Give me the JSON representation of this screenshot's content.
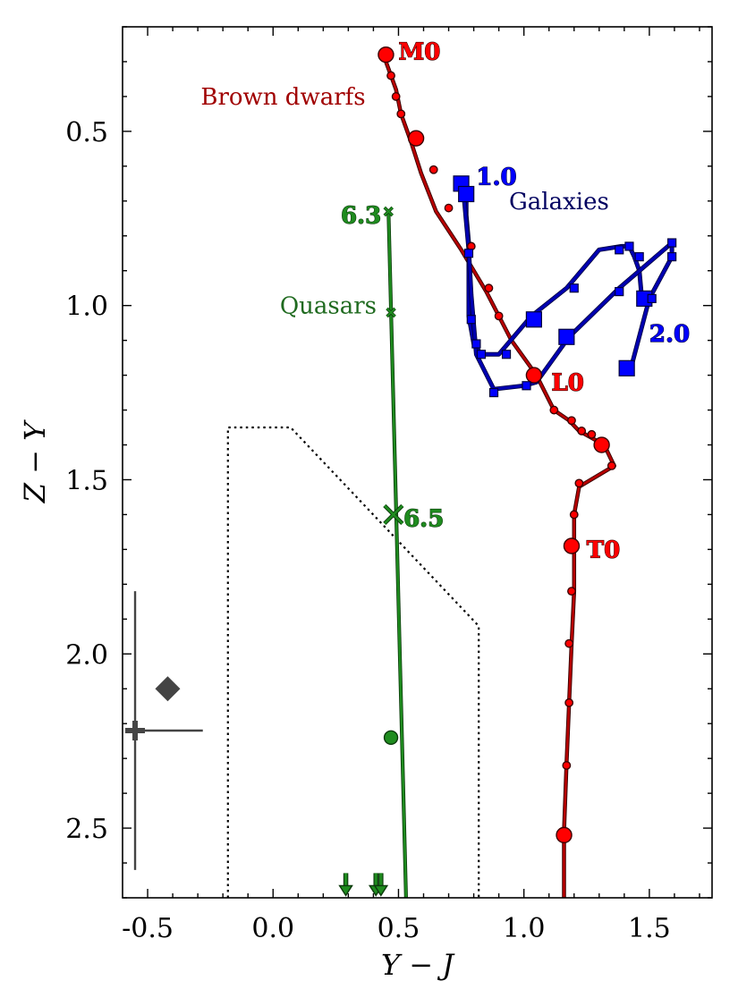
{
  "chart_data": {
    "type": "line",
    "title": "",
    "xlabel": "Y − J",
    "ylabel": "Z − Y",
    "xlim": [
      -0.6,
      1.75
    ],
    "ylim": [
      2.7,
      0.2
    ],
    "y_inverted": true,
    "xticks": [
      -0.5,
      0.0,
      0.5,
      1.0,
      1.5
    ],
    "xtick_labels": [
      "-0.5",
      "0.0",
      "0.5",
      "1.0",
      "1.5"
    ],
    "yticks": [
      0.5,
      1.0,
      1.5,
      2.0,
      2.5
    ],
    "ytick_labels": [
      "0.5",
      "1.0",
      "1.5",
      "2.0",
      "2.5"
    ],
    "colors": {
      "brown": "#ff0000",
      "brown_line": "#b80000",
      "brown_text": "#a00000",
      "galaxy": "#0000ff",
      "galaxy_line": "#0000b0",
      "galaxy_text": "#000060",
      "quasar": "#1f8c1f",
      "quasar_text": "#1f6a1f",
      "error": "#444444"
    },
    "series": [
      {
        "name": "Brown dwarfs",
        "x": [
          0.45,
          0.47,
          0.49,
          0.51,
          0.55,
          0.59,
          0.65,
          0.75,
          0.85,
          0.95,
          1.05,
          1.12,
          1.18,
          1.22,
          1.27,
          1.32,
          1.36,
          1.22,
          1.2,
          1.2,
          1.2,
          1.19,
          1.18,
          1.17,
          1.16,
          1.16,
          1.16
        ],
        "y": [
          0.3,
          0.34,
          0.38,
          0.45,
          0.53,
          0.62,
          0.73,
          0.84,
          0.96,
          1.1,
          1.2,
          1.3,
          1.33,
          1.36,
          1.38,
          1.4,
          1.46,
          1.52,
          1.6,
          1.7,
          1.82,
          1.97,
          2.14,
          2.31,
          2.51,
          2.6,
          2.7
        ],
        "markers": [
          {
            "x": 0.45,
            "y": 0.28,
            "size": "big"
          },
          {
            "x": 0.47,
            "y": 0.34,
            "size": "small"
          },
          {
            "x": 0.49,
            "y": 0.4,
            "size": "small"
          },
          {
            "x": 0.51,
            "y": 0.45,
            "size": "small"
          },
          {
            "x": 0.57,
            "y": 0.52,
            "size": "big"
          },
          {
            "x": 0.64,
            "y": 0.61,
            "size": "small"
          },
          {
            "x": 0.7,
            "y": 0.72,
            "size": "small"
          },
          {
            "x": 0.79,
            "y": 0.83,
            "size": "small"
          },
          {
            "x": 0.86,
            "y": 0.95,
            "size": "small"
          },
          {
            "x": 0.9,
            "y": 1.03,
            "size": "small"
          },
          {
            "x": 1.04,
            "y": 1.2,
            "size": "big"
          },
          {
            "x": 1.12,
            "y": 1.3,
            "size": "small"
          },
          {
            "x": 1.19,
            "y": 1.33,
            "size": "small"
          },
          {
            "x": 1.23,
            "y": 1.36,
            "size": "small"
          },
          {
            "x": 1.27,
            "y": 1.37,
            "size": "small"
          },
          {
            "x": 1.31,
            "y": 1.4,
            "size": "big"
          },
          {
            "x": 1.35,
            "y": 1.46,
            "size": "small"
          },
          {
            "x": 1.22,
            "y": 1.51,
            "size": "small"
          },
          {
            "x": 1.2,
            "y": 1.6,
            "size": "small"
          },
          {
            "x": 1.19,
            "y": 1.69,
            "size": "big"
          },
          {
            "x": 1.19,
            "y": 1.82,
            "size": "small"
          },
          {
            "x": 1.18,
            "y": 1.97,
            "size": "small"
          },
          {
            "x": 1.18,
            "y": 2.14,
            "size": "small"
          },
          {
            "x": 1.17,
            "y": 2.32,
            "size": "small"
          },
          {
            "x": 1.16,
            "y": 2.52,
            "size": "big"
          }
        ],
        "point_labels": [
          {
            "text": "M0",
            "x": 0.5,
            "y": 0.27
          },
          {
            "text": "L0",
            "x": 1.11,
            "y": 1.22
          },
          {
            "text": "T0",
            "x": 1.25,
            "y": 1.7
          }
        ]
      },
      {
        "name": "Galaxies",
        "path_a": {
          "x": [
            0.76,
            0.77,
            0.77,
            0.78,
            0.78,
            0.8,
            0.83,
            0.9,
            1.03,
            1.17,
            1.3,
            1.39,
            1.42,
            1.44,
            1.46,
            1.47,
            1.52
          ],
          "y": [
            0.65,
            0.68,
            0.74,
            0.82,
            1.03,
            1.11,
            1.14,
            1.14,
            1.03,
            0.95,
            0.84,
            0.83,
            0.83,
            0.86,
            0.9,
            0.98,
            0.98
          ]
        },
        "path_b": {
          "x": [
            0.76,
            0.78,
            0.79,
            0.81,
            0.88,
            1.0,
            1.05,
            1.18,
            1.38,
            1.59,
            1.59,
            1.5,
            1.43
          ],
          "y": [
            0.68,
            0.84,
            0.97,
            1.14,
            1.24,
            1.23,
            1.22,
            1.09,
            0.95,
            0.82,
            0.86,
            0.98,
            1.17
          ]
        },
        "markers": [
          {
            "x": 0.75,
            "y": 0.65,
            "size": "big"
          },
          {
            "x": 0.77,
            "y": 0.68,
            "size": "big"
          },
          {
            "x": 0.78,
            "y": 0.85,
            "size": "small"
          },
          {
            "x": 0.79,
            "y": 1.04,
            "size": "small"
          },
          {
            "x": 0.81,
            "y": 1.11,
            "size": "small"
          },
          {
            "x": 0.83,
            "y": 1.14,
            "size": "small"
          },
          {
            "x": 0.88,
            "y": 1.25,
            "size": "small"
          },
          {
            "x": 0.93,
            "y": 1.14,
            "size": "small"
          },
          {
            "x": 1.01,
            "y": 1.23,
            "size": "small"
          },
          {
            "x": 1.04,
            "y": 1.04,
            "size": "big"
          },
          {
            "x": 1.17,
            "y": 1.09,
            "size": "big"
          },
          {
            "x": 1.2,
            "y": 0.95,
            "size": "small"
          },
          {
            "x": 1.38,
            "y": 0.96,
            "size": "small"
          },
          {
            "x": 1.38,
            "y": 0.84,
            "size": "small"
          },
          {
            "x": 1.42,
            "y": 0.83,
            "size": "small"
          },
          {
            "x": 1.46,
            "y": 0.86,
            "size": "small"
          },
          {
            "x": 1.48,
            "y": 0.98,
            "size": "big"
          },
          {
            "x": 1.51,
            "y": 0.98,
            "size": "small"
          },
          {
            "x": 1.59,
            "y": 0.82,
            "size": "small"
          },
          {
            "x": 1.59,
            "y": 0.86,
            "size": "small"
          },
          {
            "x": 1.41,
            "y": 1.18,
            "size": "big"
          }
        ],
        "point_labels": [
          {
            "text": "1.0",
            "x": 0.81,
            "y": 0.63
          },
          {
            "text": "2.0",
            "x": 1.5,
            "y": 1.08
          }
        ]
      },
      {
        "name": "Quasars",
        "x": [
          0.46,
          0.53
        ],
        "y": [
          0.73,
          2.7
        ],
        "markers": [
          {
            "x": 0.46,
            "y": 0.73,
            "size": "small",
            "symbol": "x"
          },
          {
            "x": 0.47,
            "y": 1.02,
            "size": "small",
            "symbol": "x"
          },
          {
            "x": 0.48,
            "y": 1.6,
            "size": "big",
            "symbol": "x"
          }
        ],
        "point_labels": [
          {
            "text": "6.3",
            "x": 0.27,
            "y": 0.74
          },
          {
            "text": "6.5",
            "x": 0.52,
            "y": 1.61
          }
        ]
      }
    ],
    "extra_points": [
      {
        "name": "quasar detection",
        "x": 0.47,
        "y": 2.24,
        "symbol": "circle"
      },
      {
        "name": "upper limit 1",
        "x": 0.29,
        "y": 2.66,
        "symbol": "arrow-down"
      },
      {
        "name": "upper limit 2",
        "x": 0.41,
        "y": 2.66,
        "symbol": "arrow-down"
      },
      {
        "name": "upper limit 3",
        "x": 0.43,
        "y": 2.66,
        "symbol": "arrow-down"
      },
      {
        "name": "diamond",
        "x": -0.42,
        "y": 2.1,
        "symbol": "diamond"
      }
    ],
    "error_bar": {
      "x": -0.55,
      "y": 2.22,
      "x_err": [
        0.0,
        0.27
      ],
      "y_err": [
        0.4,
        0.4
      ]
    },
    "selection_box": {
      "x": [
        -0.18,
        -0.18,
        0.07,
        0.82,
        0.82
      ],
      "y": [
        2.7,
        1.35,
        1.35,
        1.92,
        2.7
      ]
    },
    "annotations": [
      {
        "text": "Brown dwarfs",
        "x": 0.04,
        "y": 0.4
      },
      {
        "text": "Galaxies",
        "x": 1.14,
        "y": 0.7
      },
      {
        "text": "Quasars",
        "x": 0.22,
        "y": 1.0
      }
    ]
  }
}
